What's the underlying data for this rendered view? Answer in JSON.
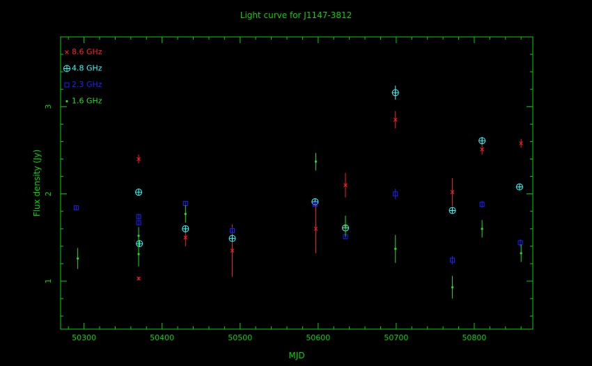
{
  "chart_data": {
    "type": "scatter",
    "title": "Light curve for J1147-3812",
    "xlabel": "MJD",
    "ylabel": "Flux density (Jy)",
    "xlim": [
      50270,
      50875
    ],
    "ylim": [
      0.45,
      3.8
    ],
    "xticks": [
      50300,
      50400,
      50500,
      50600,
      50700,
      50800
    ],
    "yticks": [
      1,
      2,
      3
    ],
    "grid": false,
    "legend_position": "top-left",
    "colors": {
      "frame": "#00d600",
      "axis_text": "#00d600",
      "background": "#000000"
    },
    "series": [
      {
        "name": "8.6 GHz",
        "color": "#ff2020",
        "marker": "cross",
        "points": [
          {
            "x": 50370,
            "y": 2.4,
            "err": 0.05
          },
          {
            "x": 50370,
            "y": 1.03,
            "err": 0.02
          },
          {
            "x": 50430,
            "y": 1.5,
            "err": 0.1
          },
          {
            "x": 50490,
            "y": 1.35,
            "err": 0.3
          },
          {
            "x": 50597,
            "y": 1.6,
            "err": 0.28
          },
          {
            "x": 50635,
            "y": 2.1,
            "err": 0.14
          },
          {
            "x": 50699,
            "y": 2.85,
            "err": 0.1
          },
          {
            "x": 50772,
            "y": 2.02,
            "err": 0.16
          },
          {
            "x": 50810,
            "y": 2.51,
            "err": 0.06
          },
          {
            "x": 50860,
            "y": 2.58,
            "err": 0.05
          }
        ]
      },
      {
        "name": "4.8 GHz",
        "color": "#33ffff",
        "marker": "circle-plus",
        "points": [
          {
            "x": 50370,
            "y": 2.02,
            "err": 0.02
          },
          {
            "x": 50371,
            "y": 1.43,
            "err": 0.03
          },
          {
            "x": 50430,
            "y": 1.6,
            "err": 0.02
          },
          {
            "x": 50490,
            "y": 1.49,
            "err": 0.02
          },
          {
            "x": 50596,
            "y": 1.91,
            "err": 0.02
          },
          {
            "x": 50635,
            "y": 1.61,
            "err": 0.02
          },
          {
            "x": 50699,
            "y": 3.16,
            "err": 0.08
          },
          {
            "x": 50772,
            "y": 1.81,
            "err": 0.02
          },
          {
            "x": 50810,
            "y": 2.61,
            "err": 0.04
          },
          {
            "x": 50858,
            "y": 2.08,
            "err": 0.03
          }
        ]
      },
      {
        "name": "2.3 GHz",
        "color": "#2020ff",
        "marker": "square",
        "points": [
          {
            "x": 50290,
            "y": 1.84,
            "err": 0.02
          },
          {
            "x": 50370,
            "y": 1.74,
            "err": 0.03
          },
          {
            "x": 50370,
            "y": 1.67,
            "err": 0.03
          },
          {
            "x": 50430,
            "y": 1.89,
            "err": 0.03
          },
          {
            "x": 50490,
            "y": 1.58,
            "err": 0.04
          },
          {
            "x": 50596,
            "y": 1.88,
            "err": 0.03
          },
          {
            "x": 50635,
            "y": 1.51,
            "err": 0.03
          },
          {
            "x": 50699,
            "y": 2.0,
            "err": 0.06
          },
          {
            "x": 50772,
            "y": 1.24,
            "err": 0.05
          },
          {
            "x": 50810,
            "y": 1.88,
            "err": 0.04
          },
          {
            "x": 50859,
            "y": 1.44,
            "err": 0.04
          }
        ]
      },
      {
        "name": "1.6 GHz",
        "color": "#20e020",
        "marker": "dot",
        "points": [
          {
            "x": 50292,
            "y": 1.26,
            "err": 0.12
          },
          {
            "x": 50370,
            "y": 1.52,
            "err": 0.1
          },
          {
            "x": 50370,
            "y": 1.31,
            "err": 0.14
          },
          {
            "x": 50430,
            "y": 1.77,
            "err": 0.1
          },
          {
            "x": 50597,
            "y": 2.37,
            "err": 0.1
          },
          {
            "x": 50635,
            "y": 1.63,
            "err": 0.12
          },
          {
            "x": 50699,
            "y": 1.37,
            "err": 0.16
          },
          {
            "x": 50772,
            "y": 0.93,
            "err": 0.13
          },
          {
            "x": 50810,
            "y": 1.6,
            "err": 0.1
          },
          {
            "x": 50860,
            "y": 1.32,
            "err": 0.1
          }
        ]
      }
    ]
  }
}
